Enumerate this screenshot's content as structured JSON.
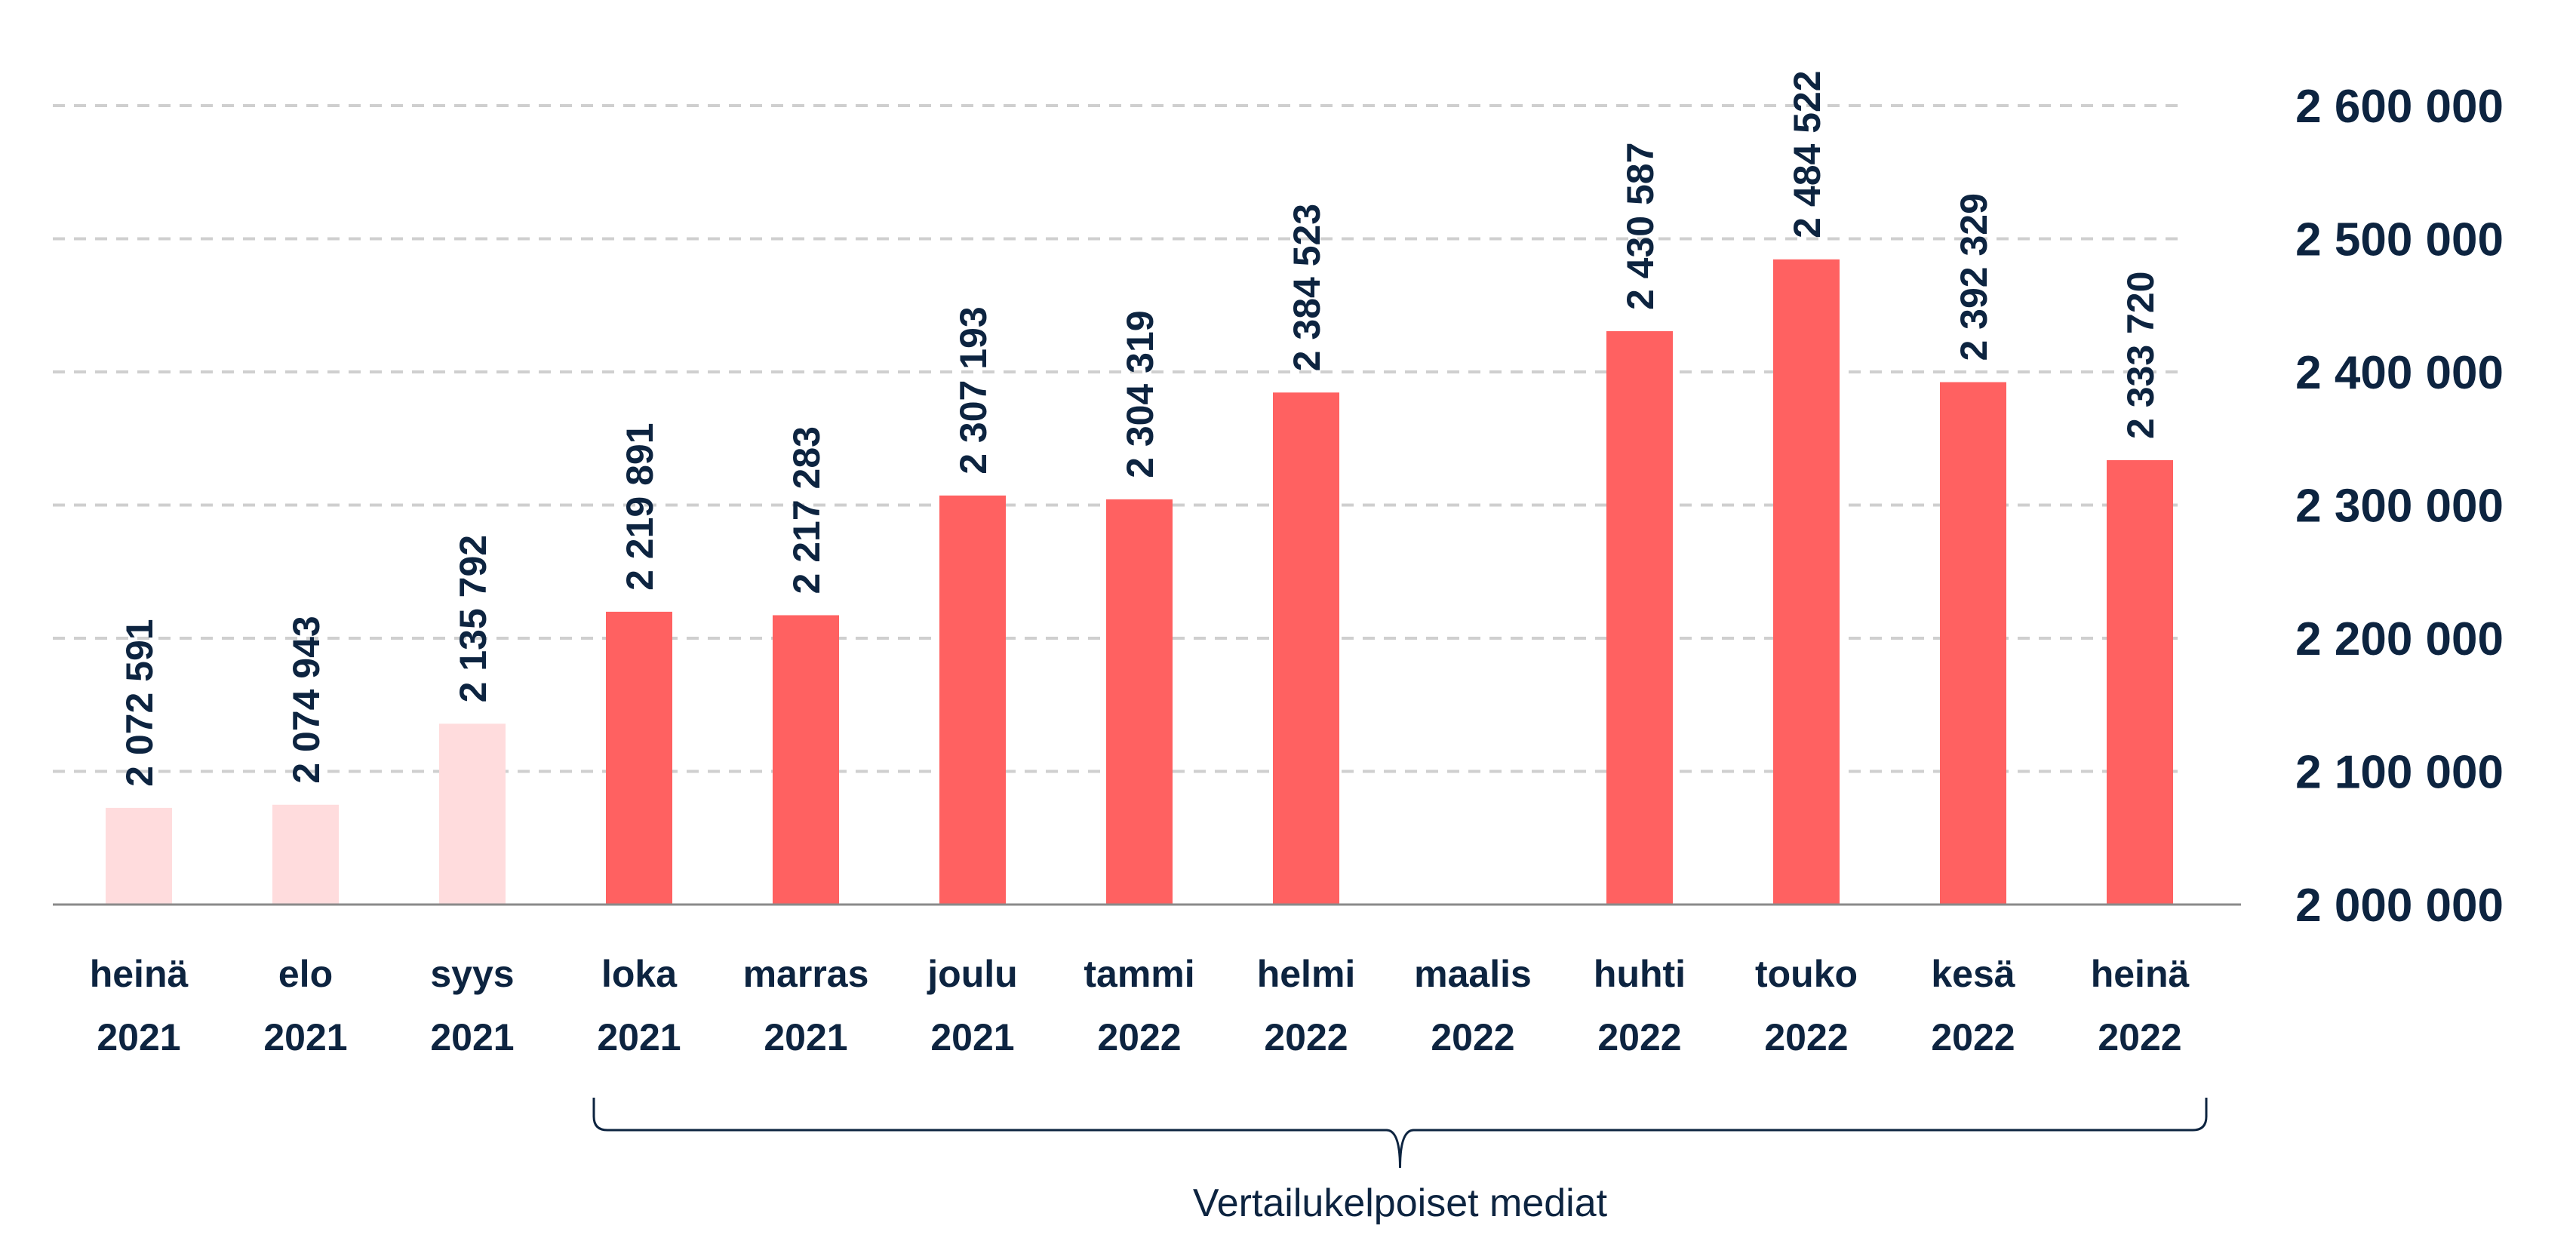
{
  "chart_data": {
    "type": "bar",
    "categories": [
      [
        "heinä",
        "2021"
      ],
      [
        "elo",
        "2021"
      ],
      [
        "syys",
        "2021"
      ],
      [
        "loka",
        "2021"
      ],
      [
        "marras",
        "2021"
      ],
      [
        "joulu",
        "2021"
      ],
      [
        "tammi",
        "2022"
      ],
      [
        "helmi",
        "2022"
      ],
      [
        "maalis",
        "2022"
      ],
      [
        "huhti",
        "2022"
      ],
      [
        "touko",
        "2022"
      ],
      [
        "kesä",
        "2022"
      ],
      [
        "heinä",
        "2022"
      ]
    ],
    "values": [
      2072591,
      2074943,
      2135792,
      2219891,
      2217283,
      2307193,
      2304319,
      2384523,
      null,
      2430587,
      2484522,
      2392329,
      2333720
    ],
    "value_labels": [
      "2 072 591",
      "2 074 943",
      "2 135 792",
      "2 219 891",
      "2 217 283",
      "2 307 193",
      "2 304 319",
      "2 384 523",
      "",
      "2 430 587",
      "2 484 522",
      "2 392 329",
      "2 333 720"
    ],
    "bar_styles": [
      "light",
      "light",
      "light",
      "dark",
      "dark",
      "dark",
      "dark",
      "dark",
      "dark",
      "dark",
      "dark",
      "dark",
      "dark"
    ],
    "ylim": [
      2000000,
      2600000
    ],
    "yticks": [
      2000000,
      2100000,
      2200000,
      2300000,
      2400000,
      2500000,
      2600000
    ],
    "ytick_labels": [
      "2 000 000",
      "2 100 000",
      "2 200 000",
      "2 300 000",
      "2 400 000",
      "2 500 000",
      "2 600 000"
    ],
    "y_axis_side": "right",
    "grid": "horizontal dashed",
    "colors": {
      "dark": "#ff6161",
      "light": "#ffdcdd",
      "text": "#0d2440",
      "grid": "#cfcfcf",
      "axis": "#8a8a8a"
    },
    "annotation": {
      "text": "Vertailukelpoiset mediat",
      "from_category": 3,
      "to_category": 12
    }
  }
}
